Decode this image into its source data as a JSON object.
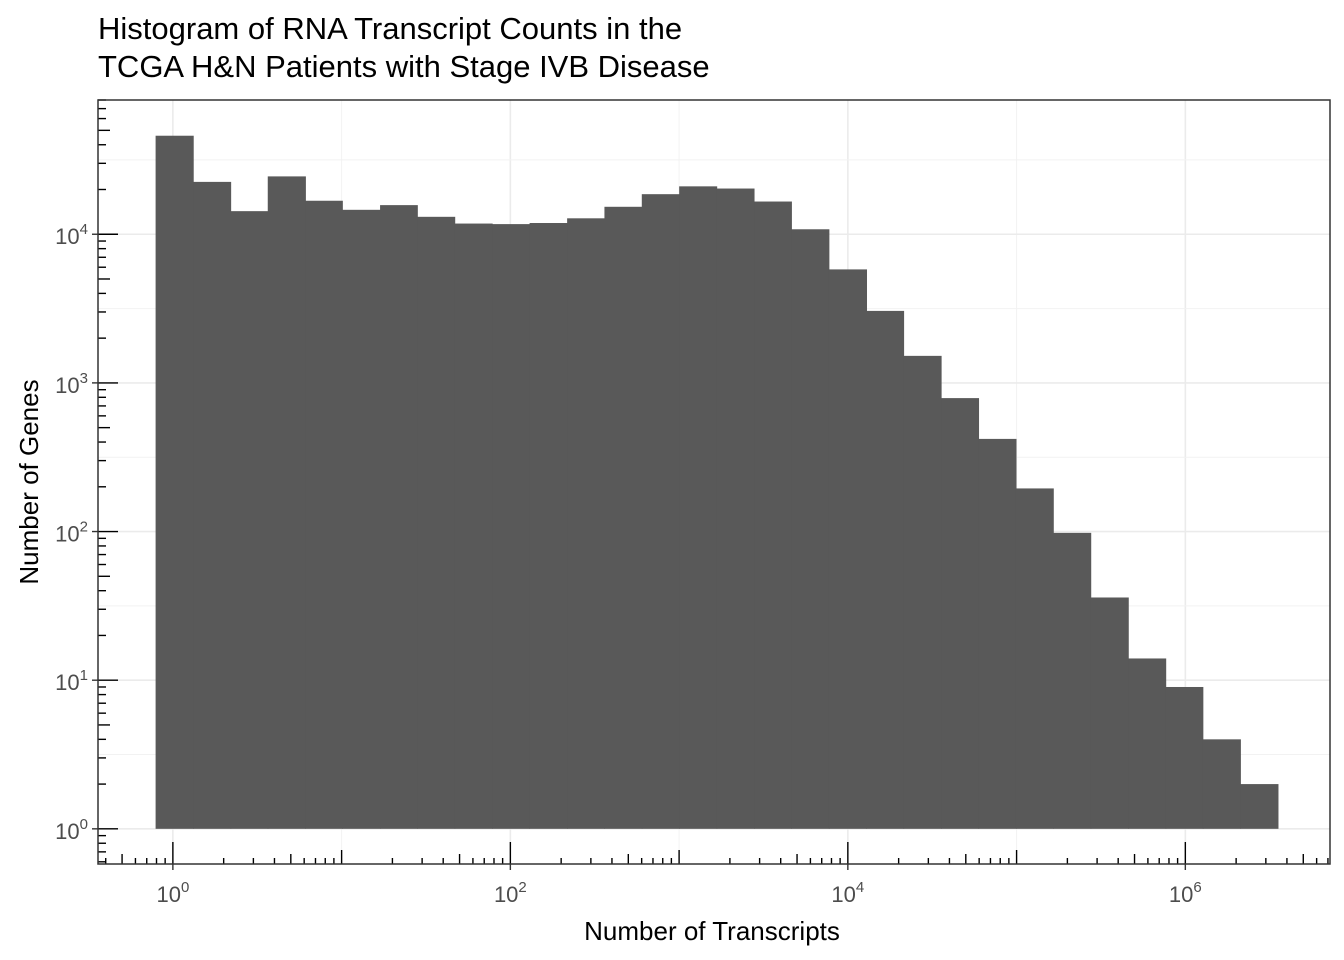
{
  "title": {
    "line1": "Histogram of RNA Transcript Counts in the",
    "line2": "TCGA H&N Patients with Stage IVB Disease"
  },
  "chart_data": {
    "type": "bar",
    "title": "Histogram of RNA Transcript Counts in the TCGA H&N Patients with Stage IVB Disease",
    "xlabel": "Number of Transcripts",
    "ylabel": "Number of Genes",
    "x_scale": "log10",
    "y_scale": "log10",
    "xlim": [
      0.36,
      7200000
    ],
    "ylim": [
      0.58,
      80000
    ],
    "x_ticks": [
      {
        "value": 1,
        "base": "10",
        "exp": "0"
      },
      {
        "value": 100,
        "base": "10",
        "exp": "2"
      },
      {
        "value": 10000,
        "base": "10",
        "exp": "4"
      },
      {
        "value": 1000000,
        "base": "10",
        "exp": "6"
      }
    ],
    "y_ticks": [
      {
        "value": 1,
        "base": "10",
        "exp": "0"
      },
      {
        "value": 10,
        "base": "10",
        "exp": "1"
      },
      {
        "value": 100,
        "base": "10",
        "exp": "2"
      },
      {
        "value": 1000,
        "base": "10",
        "exp": "3"
      },
      {
        "value": 10000,
        "base": "10",
        "exp": "4"
      }
    ],
    "grid": true,
    "bar_color": "#595959",
    "bins": [
      {
        "x_start": 0.79,
        "x_end": 1.32,
        "count": 46000
      },
      {
        "x_start": 1.32,
        "x_end": 2.2,
        "count": 22500
      },
      {
        "x_start": 2.2,
        "x_end": 3.65,
        "count": 14300
      },
      {
        "x_start": 3.65,
        "x_end": 6.1,
        "count": 24500
      },
      {
        "x_start": 6.1,
        "x_end": 10.1,
        "count": 16800
      },
      {
        "x_start": 10.1,
        "x_end": 16.9,
        "count": 14600
      },
      {
        "x_start": 16.9,
        "x_end": 28.1,
        "count": 15700
      },
      {
        "x_start": 28.1,
        "x_end": 46.8,
        "count": 13100
      },
      {
        "x_start": 46.8,
        "x_end": 78,
        "count": 11800
      },
      {
        "x_start": 78,
        "x_end": 130,
        "count": 11700
      },
      {
        "x_start": 130,
        "x_end": 217,
        "count": 11900
      },
      {
        "x_start": 217,
        "x_end": 361,
        "count": 12800
      },
      {
        "x_start": 361,
        "x_end": 601,
        "count": 15300
      },
      {
        "x_start": 601,
        "x_end": 1001,
        "count": 18600
      },
      {
        "x_start": 1001,
        "x_end": 1670,
        "count": 21000
      },
      {
        "x_start": 1670,
        "x_end": 2780,
        "count": 20300
      },
      {
        "x_start": 2780,
        "x_end": 4630,
        "count": 16600
      },
      {
        "x_start": 4630,
        "x_end": 7720,
        "count": 10800
      },
      {
        "x_start": 7720,
        "x_end": 12900,
        "count": 5800
      },
      {
        "x_start": 12900,
        "x_end": 21400,
        "count": 3050
      },
      {
        "x_start": 21400,
        "x_end": 35700,
        "count": 1520
      },
      {
        "x_start": 35700,
        "x_end": 59500,
        "count": 790
      },
      {
        "x_start": 59500,
        "x_end": 99200,
        "count": 420
      },
      {
        "x_start": 99200,
        "x_end": 165000,
        "count": 195
      },
      {
        "x_start": 165000,
        "x_end": 275000,
        "count": 98
      },
      {
        "x_start": 275000,
        "x_end": 459000,
        "count": 36
      },
      {
        "x_start": 459000,
        "x_end": 765000,
        "count": 14
      },
      {
        "x_start": 765000,
        "x_end": 1270000,
        "count": 9
      },
      {
        "x_start": 1270000,
        "x_end": 2120000,
        "count": 4
      },
      {
        "x_start": 2120000,
        "x_end": 3540000,
        "count": 2
      }
    ]
  }
}
